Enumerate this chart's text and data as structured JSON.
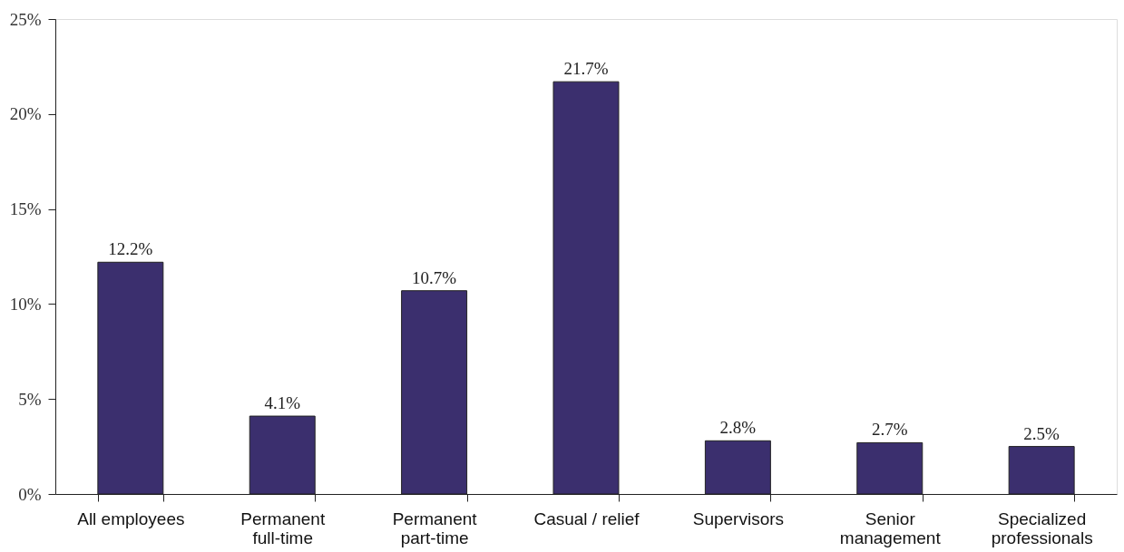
{
  "chart_data": {
    "type": "bar",
    "categories": [
      "All employees",
      "Permanent\nfull-time",
      "Permanent\npart-time",
      "Casual / relief",
      "Supervisors",
      "Senior\nmanagement",
      "Specialized\nprofessionals"
    ],
    "values": [
      12.2,
      4.1,
      10.7,
      21.7,
      2.8,
      2.7,
      2.5
    ],
    "value_labels": [
      "12.2%",
      "4.1%",
      "10.7%",
      "21.7%",
      "2.8%",
      "2.7%",
      "2.5%"
    ],
    "color": "#3b2f6e",
    "ylim": [
      0,
      25
    ],
    "yticks": [
      {
        "value": 0,
        "label": "0%"
      },
      {
        "value": 5,
        "label": "5%"
      },
      {
        "value": 10,
        "label": "10%"
      },
      {
        "value": 15,
        "label": "15%"
      },
      {
        "value": 20,
        "label": "20%"
      },
      {
        "value": 25,
        "label": "25%"
      }
    ],
    "grid": false
  }
}
